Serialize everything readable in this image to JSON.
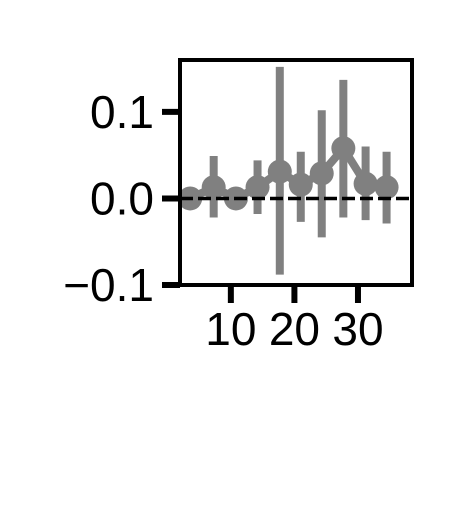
{
  "chart_data": {
    "type": "line",
    "title": "",
    "xlabel": "",
    "ylabel": "",
    "xlim": [
      2,
      38.5
    ],
    "ylim": [
      -0.1,
      0.16
    ],
    "x_ticks": [
      10,
      20,
      30
    ],
    "y_ticks": [
      -0.1,
      0.0,
      0.1
    ],
    "x_tick_labels": [
      "10",
      "20",
      "30"
    ],
    "y_tick_labels": [
      "−0.1",
      "0.0",
      "0.1"
    ],
    "reference_line_y": 0.0,
    "grid": false,
    "legend": "none",
    "series": [
      {
        "color": "#808080",
        "points": [
          {
            "x": 3.6,
            "y": 0.0,
            "err_low": 0.0,
            "err_high": 0.0
          },
          {
            "x": 7.3,
            "y": 0.013,
            "err_low": -0.022,
            "err_high": 0.049
          },
          {
            "x": 10.8,
            "y": 0.0,
            "err_low": 0.0,
            "err_high": 0.0
          },
          {
            "x": 14.2,
            "y": 0.013,
            "err_low": -0.018,
            "err_high": 0.044
          },
          {
            "x": 17.7,
            "y": 0.031,
            "err_low": -0.088,
            "err_high": 0.152
          },
          {
            "x": 21.0,
            "y": 0.016,
            "err_low": -0.027,
            "err_high": 0.054
          },
          {
            "x": 24.3,
            "y": 0.029,
            "err_low": -0.045,
            "err_high": 0.102
          },
          {
            "x": 27.7,
            "y": 0.058,
            "err_low": -0.022,
            "err_high": 0.137
          },
          {
            "x": 31.2,
            "y": 0.017,
            "err_low": -0.025,
            "err_high": 0.06
          },
          {
            "x": 34.5,
            "y": 0.013,
            "err_low": -0.029,
            "err_high": 0.054
          }
        ]
      }
    ]
  }
}
